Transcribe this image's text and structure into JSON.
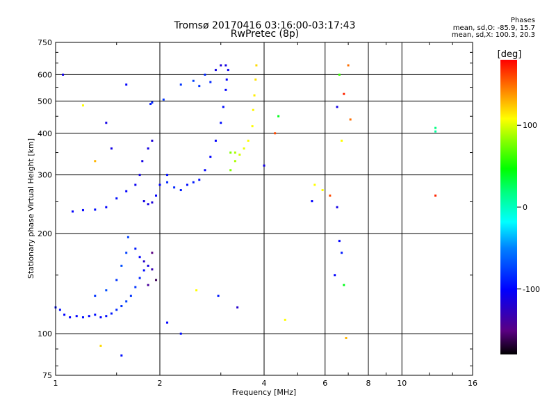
{
  "title_line1": "Tromsø 20170416 03:16:00-03:17:43",
  "title_line2": "RwPretec (8p)",
  "phase_box": {
    "heading": "Phases",
    "line_o": "mean, sd,O: -85.9, 15.7",
    "line_x": "mean, sd,X: 100.3, 20.3"
  },
  "colorbar": {
    "label": "[deg]",
    "ticks": [
      {
        "label": "100",
        "value": 100
      },
      {
        "label": "0",
        "value": 0
      },
      {
        "label": "-100",
        "value": -100
      }
    ],
    "range": [
      -180,
      180
    ]
  },
  "chart_data": {
    "type": "scatter",
    "title": "Tromsø 20170416 03:16:00-03:17:43",
    "subtitle": "RwPretec (8p)",
    "xlabel": "Frequency [MHz]",
    "ylabel": "Stationary phase Virtual Height [km]",
    "xscale": "log",
    "yscale": "log",
    "xlim": [
      1,
      16
    ],
    "ylim": [
      75,
      750
    ],
    "xticks": [
      {
        "label": "1",
        "value": 1
      },
      {
        "label": "2",
        "value": 2
      },
      {
        "label": "4",
        "value": 4
      },
      {
        "label": "6",
        "value": 6
      },
      {
        "label": "8",
        "value": 8
      },
      {
        "label": "10",
        "value": 10
      },
      {
        "label": "16",
        "value": 16
      }
    ],
    "xgrid": [
      1,
      2,
      4,
      6,
      8,
      10,
      16
    ],
    "yticks": [
      {
        "label": "75",
        "value": 75
      },
      {
        "label": "100",
        "value": 100
      },
      {
        "label": "200",
        "value": 200
      },
      {
        "label": "300",
        "value": 300
      },
      {
        "label": "400",
        "value": 400
      },
      {
        "label": "500",
        "value": 500
      },
      {
        "label": "600",
        "value": 600
      },
      {
        "label": "750",
        "value": 750
      }
    ],
    "ygrid": [
      100,
      200,
      300,
      400,
      500,
      600,
      750
    ],
    "grid": true,
    "series": [
      {
        "color_by": "phase_deg",
        "points": [
          [
            1.0,
            120,
            -95
          ],
          [
            1.03,
            118,
            -95
          ],
          [
            1.06,
            114,
            -100
          ],
          [
            1.1,
            112,
            -100
          ],
          [
            1.15,
            113,
            -100
          ],
          [
            1.2,
            112,
            -95
          ],
          [
            1.25,
            113,
            -100
          ],
          [
            1.3,
            114,
            -95
          ],
          [
            1.35,
            112,
            -100
          ],
          [
            1.4,
            113,
            -95
          ],
          [
            1.45,
            115,
            -90
          ],
          [
            1.5,
            118,
            -85
          ],
          [
            1.55,
            121,
            -80
          ],
          [
            1.6,
            125,
            -75
          ],
          [
            1.65,
            130,
            -80
          ],
          [
            1.7,
            138,
            -80
          ],
          [
            1.75,
            147,
            -85
          ],
          [
            1.8,
            155,
            -95
          ],
          [
            1.85,
            160,
            -110
          ],
          [
            1.9,
            156,
            -130
          ],
          [
            1.3,
            130,
            -80
          ],
          [
            1.4,
            135,
            -70
          ],
          [
            1.5,
            145,
            -80
          ],
          [
            1.55,
            160,
            -70
          ],
          [
            1.6,
            175,
            -75
          ],
          [
            1.62,
            195,
            -75
          ],
          [
            1.7,
            180,
            -90
          ],
          [
            1.75,
            170,
            -100
          ],
          [
            1.8,
            165,
            -120
          ],
          [
            1.85,
            140,
            -140
          ],
          [
            1.9,
            175,
            -150
          ],
          [
            1.95,
            145,
            -160
          ],
          [
            1.12,
            233,
            -100
          ],
          [
            1.2,
            235,
            -100
          ],
          [
            1.3,
            236,
            -95
          ],
          [
            1.4,
            240,
            -100
          ],
          [
            1.5,
            255,
            -95
          ],
          [
            1.6,
            268,
            -100
          ],
          [
            1.7,
            280,
            -105
          ],
          [
            1.75,
            300,
            -110
          ],
          [
            1.78,
            330,
            -110
          ],
          [
            1.8,
            250,
            -110
          ],
          [
            1.85,
            245,
            -110
          ],
          [
            1.9,
            248,
            -115
          ],
          [
            1.95,
            260,
            -100
          ],
          [
            2.0,
            280,
            -100
          ],
          [
            2.1,
            300,
            -95
          ],
          [
            1.85,
            360,
            -110
          ],
          [
            1.9,
            380,
            -115
          ],
          [
            1.88,
            490,
            -90
          ],
          [
            1.9,
            495,
            -85
          ],
          [
            2.05,
            505,
            -80
          ],
          [
            2.1,
            285,
            -85
          ],
          [
            2.2,
            275,
            -85
          ],
          [
            2.3,
            270,
            -90
          ],
          [
            2.4,
            280,
            -95
          ],
          [
            2.5,
            285,
            -90
          ],
          [
            2.6,
            290,
            -95
          ],
          [
            2.7,
            310,
            -100
          ],
          [
            2.8,
            340,
            -100
          ],
          [
            2.9,
            380,
            -100
          ],
          [
            3.0,
            430,
            -95
          ],
          [
            3.05,
            480,
            -95
          ],
          [
            3.1,
            540,
            -100
          ],
          [
            3.12,
            580,
            -100
          ],
          [
            3.15,
            620,
            -105
          ],
          [
            3.1,
            640,
            -110
          ],
          [
            2.3,
            560,
            -80
          ],
          [
            2.5,
            575,
            -75
          ],
          [
            2.7,
            600,
            -85
          ],
          [
            2.9,
            620,
            -110
          ],
          [
            3.0,
            640,
            -115
          ],
          [
            2.6,
            555,
            -80
          ],
          [
            2.8,
            570,
            -85
          ],
          [
            3.2,
            310,
            80
          ],
          [
            3.3,
            330,
            90
          ],
          [
            3.4,
            345,
            100
          ],
          [
            3.5,
            360,
            105
          ],
          [
            3.6,
            380,
            110
          ],
          [
            3.7,
            420,
            110
          ],
          [
            3.72,
            470,
            112
          ],
          [
            3.75,
            520,
            115
          ],
          [
            3.78,
            580,
            118
          ],
          [
            3.8,
            640,
            120
          ],
          [
            3.2,
            350,
            80
          ],
          [
            3.3,
            350,
            90
          ],
          [
            4.4,
            450,
            40
          ],
          [
            5.5,
            250,
            -100
          ],
          [
            5.6,
            280,
            110
          ],
          [
            6.5,
            240,
            -110
          ],
          [
            6.6,
            190,
            -100
          ],
          [
            6.7,
            175,
            -90
          ],
          [
            6.8,
            140,
            40
          ],
          [
            6.4,
            150,
            -100
          ],
          [
            6.5,
            480,
            -110
          ],
          [
            6.6,
            600,
            60
          ],
          [
            6.8,
            525,
            170
          ],
          [
            7.0,
            640,
            150
          ],
          [
            7.1,
            440,
            150
          ],
          [
            6.2,
            260,
            160
          ],
          [
            12.5,
            415,
            20
          ],
          [
            12.5,
            405,
            10
          ],
          [
            12.5,
            260,
            170
          ],
          [
            1.05,
            600,
            -110
          ],
          [
            1.2,
            485,
            110
          ],
          [
            1.3,
            330,
            130
          ],
          [
            1.4,
            430,
            -110
          ],
          [
            1.45,
            360,
            -110
          ],
          [
            1.6,
            560,
            -100
          ],
          [
            2.3,
            100,
            -95
          ],
          [
            2.1,
            108,
            -100
          ],
          [
            2.55,
            135,
            110
          ],
          [
            2.95,
            130,
            -90
          ],
          [
            1.35,
            92,
            120
          ],
          [
            1.55,
            86,
            -95
          ],
          [
            3.35,
            120,
            -120
          ],
          [
            4.3,
            400,
            160
          ],
          [
            4.0,
            320,
            -110
          ],
          [
            4.6,
            110,
            110
          ],
          [
            5.9,
            270,
            110
          ],
          [
            6.7,
            380,
            110
          ],
          [
            6.9,
            97,
            130
          ]
        ]
      }
    ]
  }
}
